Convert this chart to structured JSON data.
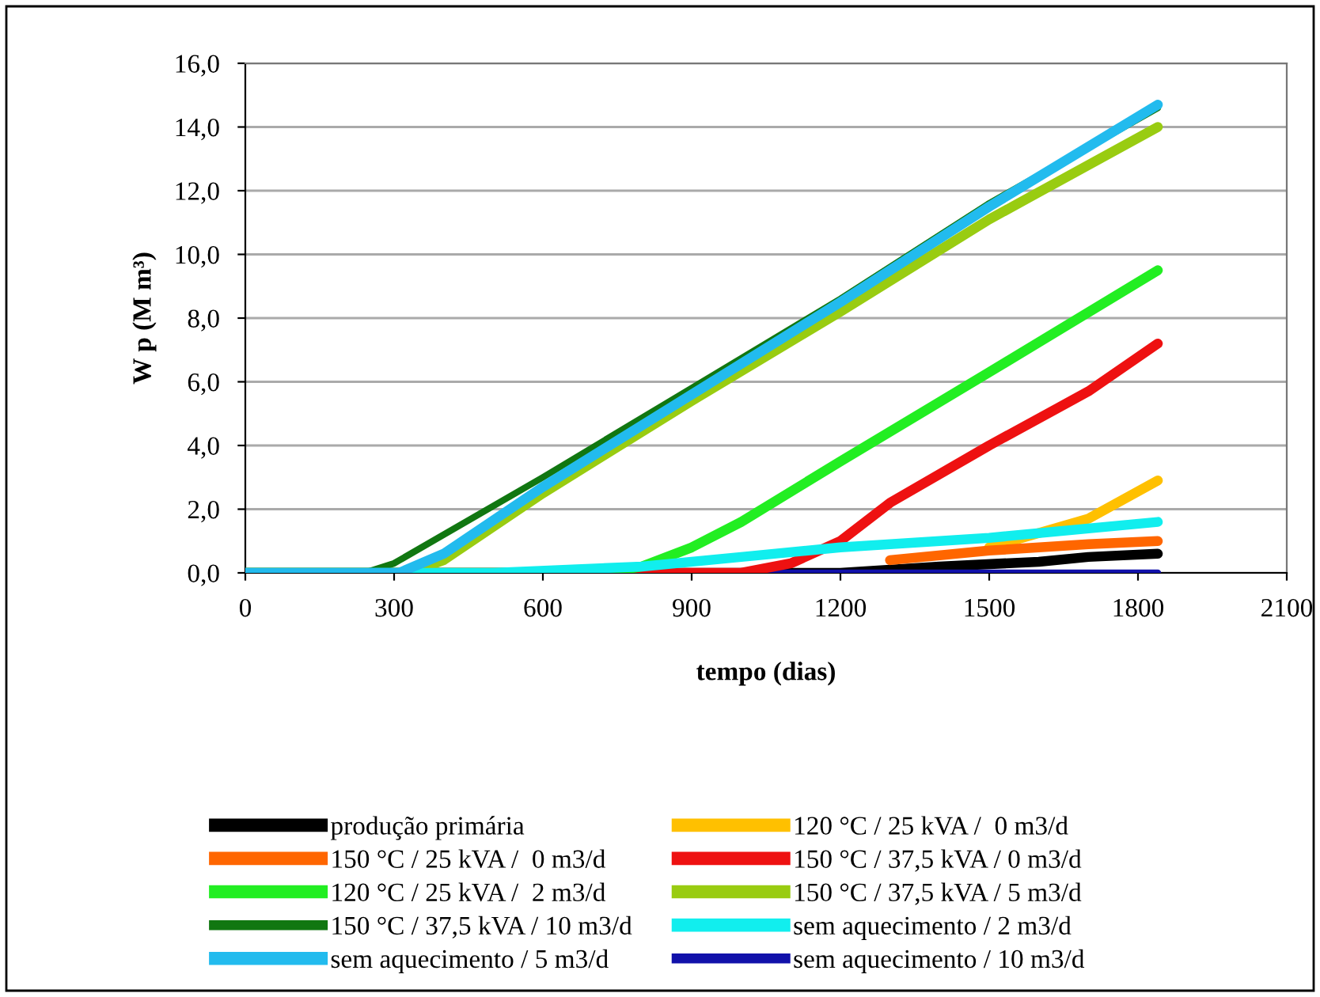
{
  "chart_data": {
    "type": "line",
    "xlabel": "tempo (dias)",
    "ylabel": "W p (M m³)",
    "xlim": [
      0,
      2100
    ],
    "xticks": [
      0,
      300,
      600,
      900,
      1200,
      1500,
      1800,
      2100
    ],
    "ylim": [
      0,
      16
    ],
    "yticks": [
      {
        "value": 0,
        "label": "0,0"
      },
      {
        "value": 2,
        "label": "2,0"
      },
      {
        "value": 4,
        "label": "4,0"
      },
      {
        "value": 6,
        "label": "6,0"
      },
      {
        "value": 8,
        "label": "8,0"
      },
      {
        "value": 10,
        "label": "10,0"
      },
      {
        "value": 12,
        "label": "12,0"
      },
      {
        "value": 14,
        "label": "14,0"
      },
      {
        "value": 16,
        "label": "16,0"
      }
    ],
    "grid": "y",
    "legend": "bottom",
    "marker": "none",
    "line_style": "solid",
    "series": [
      {
        "name": "produção primária",
        "color": "#000000",
        "x": [
          0,
          1200,
          1400,
          1600,
          1700,
          1840
        ],
        "values": [
          0,
          0,
          0.2,
          0.35,
          0.5,
          0.6
        ]
      },
      {
        "name": "120 °C / 25 kVA /  0 m3/d",
        "color": "#ffc000",
        "x": [
          1500,
          1700,
          1840
        ],
        "values": [
          0.8,
          1.7,
          2.9
        ]
      },
      {
        "name": "150 °C / 25 kVA /  0 m3/d",
        "color": "#ff6600",
        "x": [
          1300,
          1500,
          1700,
          1840
        ],
        "values": [
          0.4,
          0.7,
          0.9,
          1.0
        ]
      },
      {
        "name": "150 °C / 37,5 kVA / 0 m3/d",
        "color": "#ee1111",
        "x": [
          0,
          1000,
          1100,
          1200,
          1300,
          1500,
          1700,
          1840
        ],
        "values": [
          0,
          0,
          0.3,
          1.0,
          2.2,
          4.0,
          5.7,
          7.2
        ]
      },
      {
        "name": "120 °C / 25 kVA /  2 m3/d",
        "color": "#22ee22",
        "x": [
          0,
          720,
          800,
          900,
          1000,
          1200,
          1500,
          1840
        ],
        "values": [
          0,
          0,
          0.2,
          0.8,
          1.6,
          3.5,
          6.3,
          9.5
        ]
      },
      {
        "name": "150 °C / 37,5 kVA / 5 m3/d",
        "color": "#99cc11",
        "x": [
          0,
          330,
          400,
          600,
          900,
          1200,
          1500,
          1840
        ],
        "values": [
          0,
          0,
          0.4,
          2.5,
          5.4,
          8.2,
          11.1,
          14.0
        ]
      },
      {
        "name": "150 °C / 37,5 kVA / 10 m3/d",
        "color": "#117711",
        "x": [
          0,
          240,
          300,
          600,
          900,
          1200,
          1500,
          1840
        ],
        "values": [
          0,
          0,
          0.3,
          3.0,
          5.8,
          8.6,
          11.6,
          14.6
        ]
      },
      {
        "name": "sem aquecimento / 2 m3/d",
        "color": "#11eeee",
        "x": [
          0,
          500,
          800,
          1000,
          1200,
          1500,
          1840
        ],
        "values": [
          0,
          0,
          0.2,
          0.5,
          0.8,
          1.1,
          1.6
        ]
      },
      {
        "name": "sem aquecimento / 5 m3/d",
        "color": "#22bbee",
        "x": [
          0,
          310,
          400,
          600,
          900,
          1200,
          1500,
          1840
        ],
        "values": [
          0,
          0,
          0.6,
          2.7,
          5.6,
          8.5,
          11.5,
          14.7
        ]
      },
      {
        "name": "sem aquecimento / 10 m3/d",
        "color": "#1111aa",
        "x": [
          0,
          1840
        ],
        "values": [
          0,
          0
        ]
      }
    ]
  }
}
